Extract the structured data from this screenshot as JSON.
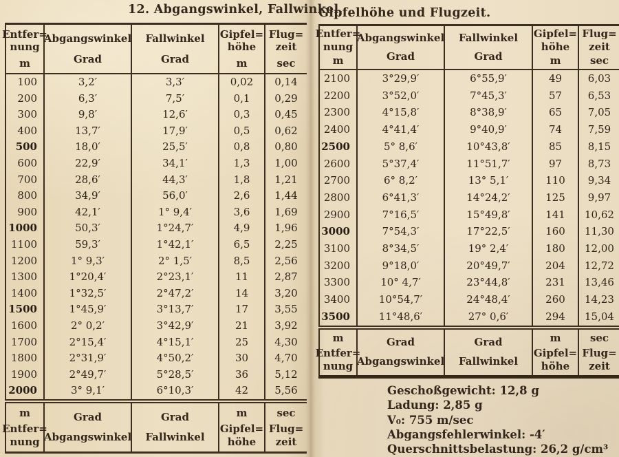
{
  "left_table": {
    "title": "12. Abgangswinkel, Fallwinkel,",
    "columns": {
      "distance": {
        "label": "Entfer=\nnung",
        "unit": "m"
      },
      "launch_angle": {
        "label": "Abgangswinkel",
        "unit": "Grad"
      },
      "fall_angle": {
        "label": "Fallwinkel",
        "unit": "Grad"
      },
      "summit_height": {
        "label": "Gipfel=\nhöhe",
        "unit": "m"
      },
      "flight_time": {
        "label": "Flug=\nzeit",
        "unit": "sec"
      }
    },
    "footer": {
      "distance": {
        "unit": "m",
        "label": "Entfer=\nnung"
      },
      "launch_angle": {
        "unit": "Grad",
        "label": "Abgangswinkel"
      },
      "fall_angle": {
        "unit": "Grad",
        "label": "Fallwinkel"
      },
      "summit_height": {
        "unit": "m",
        "label": "Gipfel=\nhöhe"
      },
      "flight_time": {
        "unit": "sec",
        "label": "Flug=\nzeit"
      }
    },
    "rows": [
      {
        "d": "100",
        "a": "3,2′",
        "f": "3,3′",
        "g": "0,02",
        "t": "0,14",
        "b": false
      },
      {
        "d": "200",
        "a": "6,3′",
        "f": "7,5′",
        "g": "0,1",
        "t": "0,29",
        "b": false
      },
      {
        "d": "300",
        "a": "9,8′",
        "f": "12,6′",
        "g": "0,3",
        "t": "0,45",
        "b": false
      },
      {
        "d": "400",
        "a": "13,7′",
        "f": "17,9′",
        "g": "0,5",
        "t": "0,62",
        "b": false
      },
      {
        "d": "500",
        "a": "18,0′",
        "f": "25,5′",
        "g": "0,8",
        "t": "0,80",
        "b": true
      },
      {
        "d": "600",
        "a": "22,9′",
        "f": "34,1′",
        "g": "1,3",
        "t": "1,00",
        "b": false
      },
      {
        "d": "700",
        "a": "28,6′",
        "f": "44,3′",
        "g": "1,8",
        "t": "1,21",
        "b": false
      },
      {
        "d": "800",
        "a": "34,9′",
        "f": "56,0′",
        "g": "2,6",
        "t": "1,44",
        "b": false
      },
      {
        "d": "900",
        "a": "42,1′",
        "f": "1° 9,4′",
        "g": "3,6",
        "t": "1,69",
        "b": false
      },
      {
        "d": "1000",
        "a": "50,3′",
        "f": "1°24,7′",
        "g": "4,9",
        "t": "1,96",
        "b": true
      },
      {
        "d": "1100",
        "a": "59,3′",
        "f": "1°42,1′",
        "g": "6,5",
        "t": "2,25",
        "b": false
      },
      {
        "d": "1200",
        "a": "1° 9,3′",
        "f": "2° 1,5′",
        "g": "8,5",
        "t": "2,56",
        "b": false
      },
      {
        "d": "1300",
        "a": "1°20,4′",
        "f": "2°23,1′",
        "g": "11",
        "t": "2,87",
        "b": false
      },
      {
        "d": "1400",
        "a": "1°32,5′",
        "f": "2°47,2′",
        "g": "14",
        "t": "3,20",
        "b": false
      },
      {
        "d": "1500",
        "a": "1°45,9′",
        "f": "3°13,7′",
        "g": "17",
        "t": "3,55",
        "b": true
      },
      {
        "d": "1600",
        "a": "2° 0,2′",
        "f": "3°42,9′",
        "g": "21",
        "t": "3,92",
        "b": false
      },
      {
        "d": "1700",
        "a": "2°15,4′",
        "f": "4°15,1′",
        "g": "25",
        "t": "4,30",
        "b": false
      },
      {
        "d": "1800",
        "a": "2°31,9′",
        "f": "4°50,2′",
        "g": "30",
        "t": "4,70",
        "b": false
      },
      {
        "d": "1900",
        "a": "2°49,7′",
        "f": "5°28,5′",
        "g": "36",
        "t": "5,12",
        "b": false
      },
      {
        "d": "2000",
        "a": "3° 9,1′",
        "f": "6°10,3′",
        "g": "42",
        "t": "5,56",
        "b": true
      }
    ]
  },
  "right_table": {
    "title": "Gipfelhöhe und Flugzeit.",
    "columns": {
      "distance": {
        "label": "Entfer=\nnung",
        "unit": "m"
      },
      "launch_angle": {
        "label": "Abgangswinkel",
        "unit": "Grad"
      },
      "fall_angle": {
        "label": "Fallwinkel",
        "unit": "Grad"
      },
      "summit_height": {
        "label": "Gipfel=\nhöhe",
        "unit": "m"
      },
      "flight_time": {
        "label": "Flug=\nzeit",
        "unit": "sec"
      }
    },
    "footer": {
      "distance": {
        "unit": "m",
        "label": "Entfer=\nnung"
      },
      "launch_angle": {
        "unit": "Grad",
        "label": "Abgangswinkel"
      },
      "fall_angle": {
        "unit": "Grad",
        "label": "Fallwinkel"
      },
      "summit_height": {
        "unit": "m",
        "label": "Gipfel=\nhöhe"
      },
      "flight_time": {
        "unit": "sec",
        "label": "Flug=\nzeit"
      }
    },
    "rows": [
      {
        "d": "2100",
        "a": "3°29,9′",
        "f": "6°55,9′",
        "g": "49",
        "t": "6,03",
        "b": false
      },
      {
        "d": "2200",
        "a": "3°52,0′",
        "f": "7°45,3′",
        "g": "57",
        "t": "6,53",
        "b": false
      },
      {
        "d": "2300",
        "a": "4°15,8′",
        "f": "8°38,9′",
        "g": "65",
        "t": "7,05",
        "b": false
      },
      {
        "d": "2400",
        "a": "4°41,4′",
        "f": "9°40,9′",
        "g": "74",
        "t": "7,59",
        "b": false
      },
      {
        "d": "2500",
        "a": "5° 8,6′",
        "f": "10°43,8′",
        "g": "85",
        "t": "8,15",
        "b": true
      },
      {
        "d": "2600",
        "a": "5°37,4′",
        "f": "11°51,7′",
        "g": "97",
        "t": "8,73",
        "b": false
      },
      {
        "d": "2700",
        "a": "6° 8,2′",
        "f": "13° 5,1′",
        "g": "110",
        "t": "9,34",
        "b": false
      },
      {
        "d": "2800",
        "a": "6°41,3′",
        "f": "14°24,2′",
        "g": "125",
        "t": "9,97",
        "b": false
      },
      {
        "d": "2900",
        "a": "7°16,5′",
        "f": "15°49,8′",
        "g": "141",
        "t": "10,62",
        "b": false
      },
      {
        "d": "3000",
        "a": "7°54,3′",
        "f": "17°22,5′",
        "g": "160",
        "t": "11,30",
        "b": true
      },
      {
        "d": "3100",
        "a": "8°34,5′",
        "f": "19° 2,4′",
        "g": "180",
        "t": "12,00",
        "b": false
      },
      {
        "d": "3200",
        "a": "9°18,0′",
        "f": "20°49,7′",
        "g": "204",
        "t": "12,72",
        "b": false
      },
      {
        "d": "3300",
        "a": "10° 4,7′",
        "f": "23°44,8′",
        "g": "231",
        "t": "13,46",
        "b": false
      },
      {
        "d": "3400",
        "a": "10°54,7′",
        "f": "24°48,4′",
        "g": "260",
        "t": "14,23",
        "b": false
      },
      {
        "d": "3500",
        "a": "11°48,6′",
        "f": "27° 0,6′",
        "g": "294",
        "t": "15,04",
        "b": true
      }
    ]
  },
  "notes": [
    "Geschoßgewicht: 12,8 g",
    "Ladung: 2,85 g",
    "V₀: 755 m/sec",
    "Abgangsfehlerwinkel: -4′",
    "Querschnittsbelastung: 26,2 g/cm³"
  ]
}
